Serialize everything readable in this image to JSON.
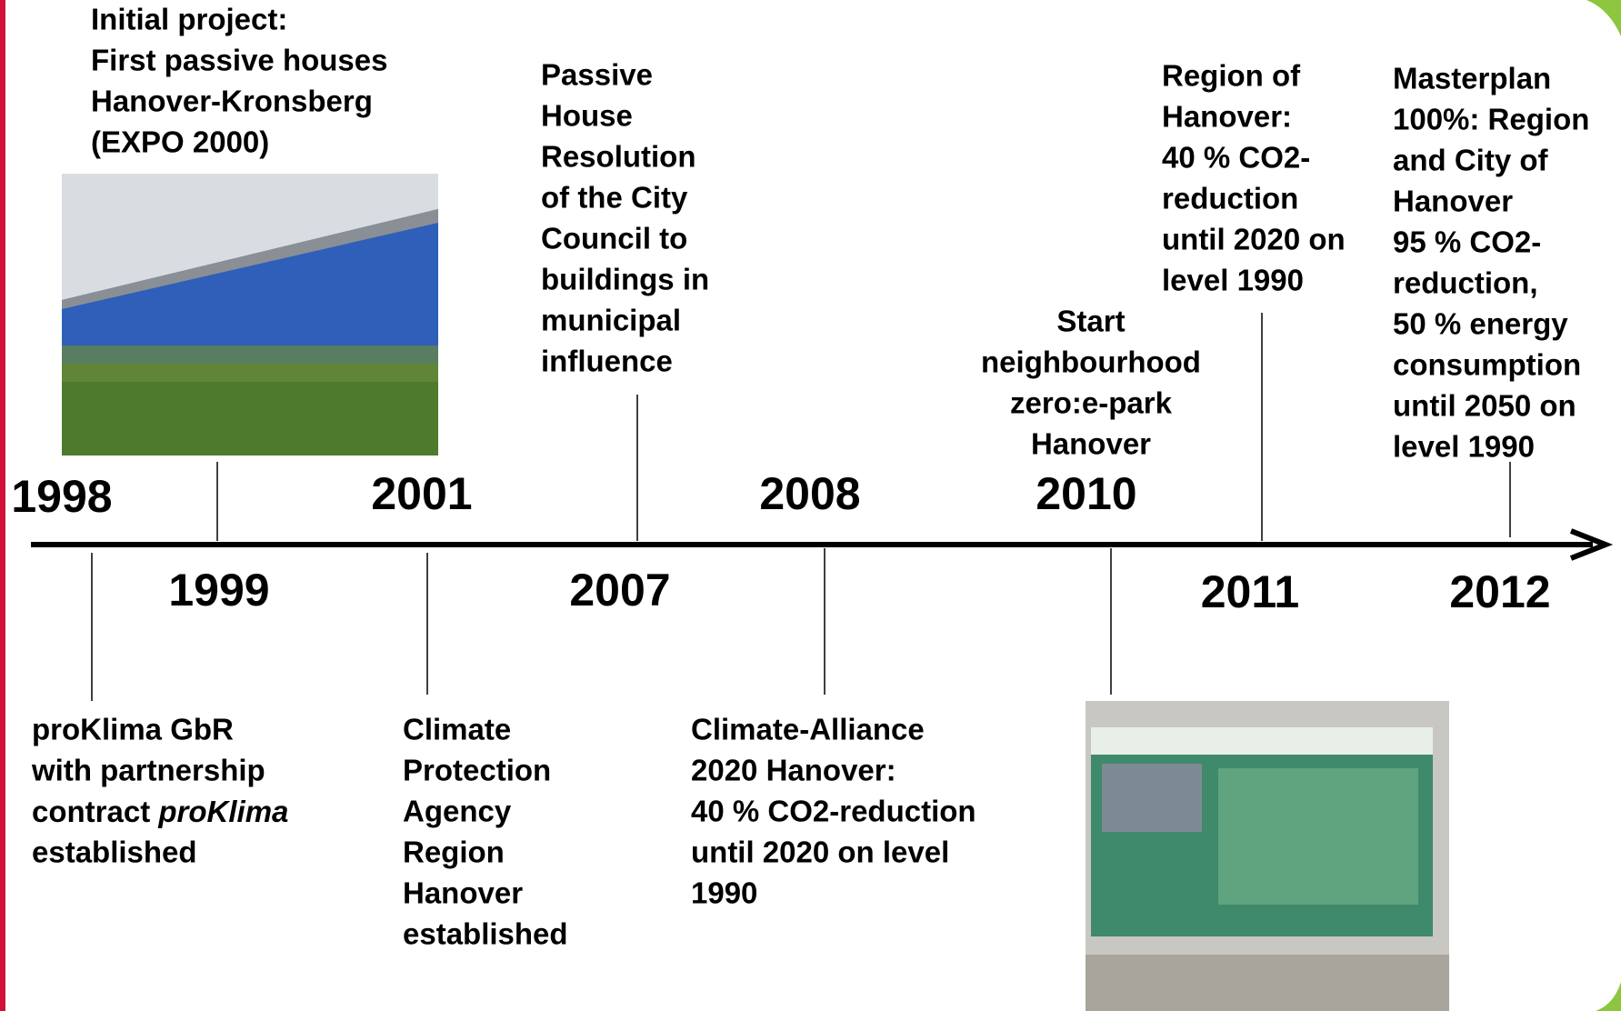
{
  "events": [
    {
      "year": "1998",
      "lines": [
        "proKlima GbR",
        "with partnership",
        [
          "contract ",
          "proKlima"
        ],
        "established"
      ]
    },
    {
      "year": "1999",
      "lines": [
        "Initial project:",
        "First passive houses",
        "Hanover-Kronsberg",
        "(EXPO 2000)"
      ]
    },
    {
      "year": "2001",
      "lines": [
        "Climate",
        "Protection",
        "Agency",
        "Region",
        "Hanover",
        "established"
      ]
    },
    {
      "year": "2007",
      "lines": [
        "Passive",
        "House",
        "Resolution",
        "of the City",
        "Council to",
        "buildings in",
        "municipal",
        "influence"
      ]
    },
    {
      "year": "2008",
      "lines": [
        "Climate-Alliance",
        "2020 Hanover:",
        "40 % CO2-reduction",
        "until 2020 on level",
        "1990"
      ]
    },
    {
      "year": "2010",
      "lines": [
        "Start",
        "neighbourhood",
        "zero:e-park",
        "Hanover"
      ]
    },
    {
      "year": "2011",
      "lines": [
        "Region of",
        "Hanover:",
        "40 % CO2-",
        "reduction",
        "until 2020 on",
        "level 1990"
      ]
    },
    {
      "year": "2012",
      "lines": [
        "Masterplan",
        "100%: Region",
        "and City of",
        "Hanover",
        "95 % CO2-",
        "reduction,",
        "50 %  energy",
        "consumption",
        "until 2050 on",
        "level 1990"
      ]
    }
  ]
}
